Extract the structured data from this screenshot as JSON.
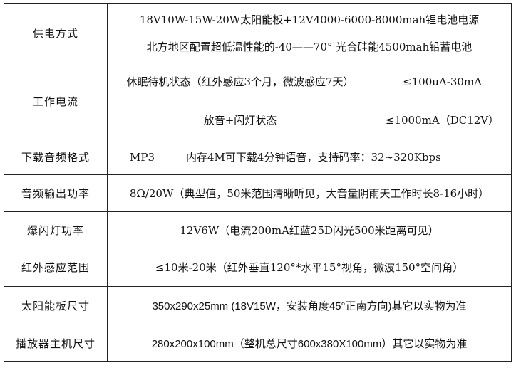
{
  "rows": [
    {
      "label": "供电方式",
      "lines": [
        "18V10W-15W-20W太阳能板+12V4000-6000-8000mah锂电池电源",
        "北方地区配置超低温性能的-40——70° 光合硅能4500mah铅蓄电池"
      ]
    },
    {
      "label": "工作电流",
      "sub": [
        {
          "state": "休眠待机状态（红外感应3个月，微波感应7天）",
          "value": "≤100uA-30mA"
        },
        {
          "state": "放音+闪灯状态",
          "value": "≤1000mA（DC12V）"
        }
      ]
    },
    {
      "label": "下载音频格式",
      "format": "MP3",
      "value": "内存4M可下载4分钟语音，支持码率：32~320Kbps"
    },
    {
      "label": "音频输出功率",
      "value": "8Ω/20W（典型值，50米范围清晰听见，大音量阴雨天工作时长8-16小时）"
    },
    {
      "label": "爆闪灯功率",
      "value": "12V6W（电流200mA红蓝25D闪光500米距离可见）"
    },
    {
      "label": "红外感应范围",
      "value": "≤10米-20米（红外垂直120°*水平15°视角，微波150°空间角）"
    },
    {
      "label": "太阳能板尺寸",
      "value": "350x290x25mm (18V15W，安装角度45°正南方向)其它以实物为准"
    },
    {
      "label": "播放器主机尺寸",
      "value": "280x200x100mm（整机总尺寸600x380X100mm）其它以实物为准"
    }
  ]
}
